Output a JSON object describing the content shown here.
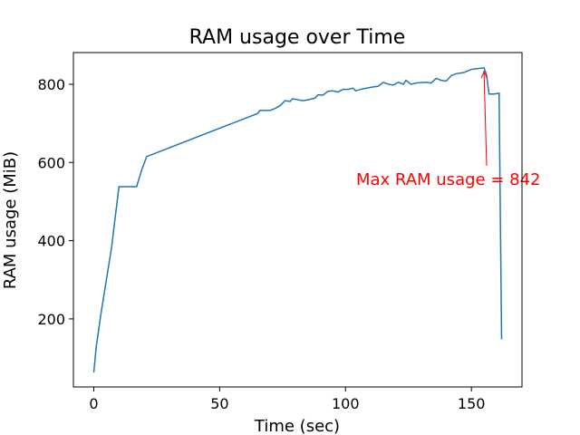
{
  "chart_data": {
    "type": "line",
    "title": "RAM usage over Time",
    "x_label": "Time (sec)",
    "y_label": "RAM usage (MiB)",
    "annotation": "Max RAM usage = 842",
    "annotation_color": "#ff0000",
    "xlim": [
      -8.1,
      170.1
    ],
    "xticks": [
      0,
      50,
      100,
      150
    ],
    "ylim": [
      26,
      881
    ],
    "yticks": [
      200,
      400,
      600,
      800
    ],
    "series": [
      {
        "name": "RAM usage",
        "color": "#1f77b4",
        "x": [
          0,
          1,
          3,
          5,
          7,
          10,
          12,
          17,
          19,
          21,
          65,
          66,
          70,
          72,
          74,
          76,
          78,
          79,
          83,
          85,
          88,
          89,
          91,
          93,
          95,
          97,
          99,
          101,
          103,
          104,
          106,
          110,
          113,
          115,
          117,
          119,
          121,
          123,
          124,
          126,
          128,
          132,
          134,
          136,
          138,
          140,
          142,
          144,
          147,
          150,
          155,
          156,
          157,
          159,
          161,
          162
        ],
        "values": [
          63,
          130,
          220,
          300,
          380,
          538,
          538,
          538,
          580,
          615,
          725,
          733,
          733,
          738,
          745,
          758,
          756,
          763,
          758,
          760,
          765,
          773,
          772,
          782,
          783,
          780,
          787,
          787,
          790,
          783,
          787,
          792,
          795,
          805,
          800,
          798,
          805,
          800,
          810,
          800,
          803,
          805,
          803,
          815,
          810,
          808,
          822,
          827,
          830,
          838,
          842,
          825,
          775,
          775,
          777,
          148
        ]
      }
    ]
  }
}
